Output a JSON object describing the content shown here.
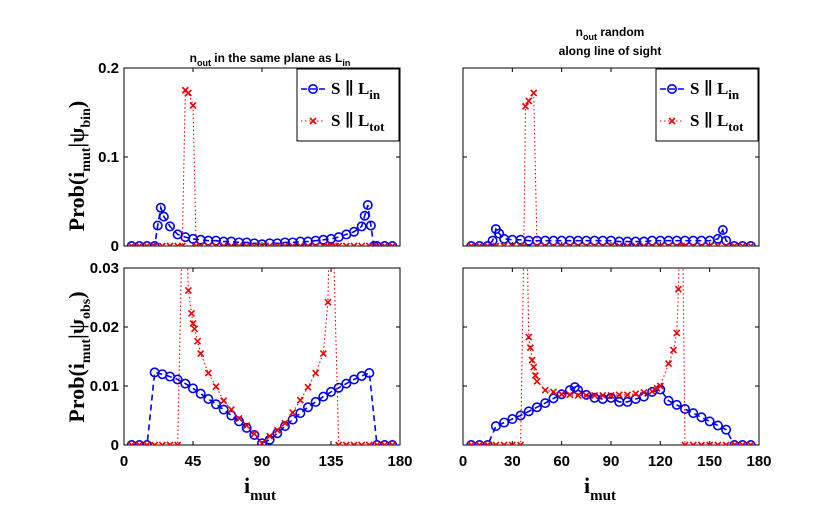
{
  "colors": {
    "blue": "#0000ee",
    "red": "#ee0000",
    "axis": "#000000"
  },
  "titles": {
    "left": {
      "main": "n",
      "sub": "out",
      "rest": " in the same plane as L",
      "sub2": "in"
    },
    "right": {
      "line1_main": "n",
      "line1_sub": "out",
      "line1_rest": " random",
      "line2": "along line of sight"
    }
  },
  "labels": {
    "y_top": {
      "main": "Prob(i",
      "sub1": "mut",
      "mid": "|ψ",
      "sub2": "bin",
      "end": ")"
    },
    "y_bottom": {
      "main": "Prob(i",
      "sub1": "mut",
      "mid": "|ψ",
      "sub2": "obs",
      "end": ")"
    },
    "x": {
      "main": "i",
      "sub": "mut"
    }
  },
  "legend": {
    "blue": {
      "main": "S ∥ L",
      "sub": "in"
    },
    "red": {
      "main": "S ∥ L",
      "sub": "tot"
    }
  },
  "chart_data": [
    {
      "id": "top-left",
      "type": "line",
      "xlim": [
        0,
        180
      ],
      "ylim": [
        0,
        0.2
      ],
      "yticks": [
        0,
        0.1,
        0.2
      ],
      "ytick_labels": [
        "0",
        "0.1",
        "0.2"
      ],
      "xticks": [
        0,
        45,
        90,
        135,
        180
      ],
      "show_xticklabels": false,
      "legend": true,
      "series": [
        {
          "name": "S ∥ L_in",
          "style": "blue",
          "x": [
            5,
            10,
            15,
            20,
            22,
            24,
            26,
            30,
            35,
            40,
            45,
            50,
            55,
            60,
            65,
            70,
            75,
            80,
            85,
            90,
            95,
            100,
            105,
            110,
            115,
            120,
            125,
            130,
            135,
            140,
            145,
            150,
            155,
            157,
            159,
            161,
            163,
            165,
            170,
            175
          ],
          "y": [
            0,
            0,
            0,
            0,
            0.023,
            0.043,
            0.033,
            0.022,
            0.013,
            0.01,
            0.008,
            0.007,
            0.006,
            0.006,
            0.005,
            0.005,
            0.004,
            0.004,
            0.003,
            0.002,
            0.003,
            0.003,
            0.004,
            0.004,
            0.005,
            0.005,
            0.006,
            0.007,
            0.008,
            0.01,
            0.013,
            0.016,
            0.022,
            0.034,
            0.046,
            0.023,
            0,
            0,
            0,
            0
          ]
        },
        {
          "name": "S ∥ L_tot",
          "style": "red",
          "x": [
            5,
            10,
            15,
            20,
            25,
            30,
            35,
            38,
            40,
            42,
            45,
            47,
            50,
            55,
            60,
            65,
            70,
            75,
            80,
            85,
            90,
            95,
            100,
            105,
            110,
            115,
            120,
            125,
            130,
            133,
            135,
            138,
            140,
            145,
            150,
            155,
            160,
            165,
            170,
            175
          ],
          "y": [
            0,
            0,
            0,
            0,
            0,
            0,
            0,
            0,
            0.175,
            0.172,
            0.158,
            0,
            0,
            0,
            0,
            0,
            0,
            0,
            0,
            0,
            0,
            0,
            0,
            0,
            0,
            0,
            0,
            0,
            0,
            0,
            0,
            0,
            0,
            0,
            0,
            0,
            0,
            0,
            0,
            0
          ]
        }
      ]
    },
    {
      "id": "top-right",
      "type": "line",
      "xlim": [
        0,
        180
      ],
      "ylim": [
        0,
        0.2
      ],
      "yticks": [
        0,
        0.1,
        0.2
      ],
      "ytick_labels": [
        "",
        "",
        ""
      ],
      "xticks": [
        0,
        30,
        60,
        90,
        120,
        150,
        180
      ],
      "show_xticklabels": false,
      "legend": true,
      "series": [
        {
          "name": "S ∥ L_in",
          "style": "blue",
          "x": [
            5,
            10,
            15,
            18,
            20,
            22,
            25,
            30,
            35,
            40,
            45,
            50,
            55,
            60,
            65,
            70,
            75,
            80,
            85,
            90,
            95,
            100,
            105,
            110,
            115,
            120,
            125,
            130,
            135,
            140,
            145,
            150,
            155,
            158,
            160,
            165,
            170,
            175
          ],
          "y": [
            0,
            0,
            0,
            0.006,
            0.019,
            0.014,
            0.008,
            0.007,
            0.007,
            0.006,
            0.006,
            0.006,
            0.006,
            0.006,
            0.006,
            0.006,
            0.006,
            0.006,
            0.006,
            0.006,
            0.005,
            0.005,
            0.005,
            0.005,
            0.006,
            0.006,
            0.006,
            0.006,
            0.006,
            0.006,
            0.006,
            0.006,
            0.008,
            0.018,
            0.006,
            0,
            0,
            0
          ]
        },
        {
          "name": "S ∥ L_tot",
          "style": "red",
          "x": [
            5,
            10,
            15,
            20,
            25,
            30,
            35,
            37,
            38,
            40,
            43,
            45,
            50,
            55,
            60,
            65,
            70,
            75,
            80,
            85,
            90,
            95,
            100,
            105,
            110,
            115,
            120,
            125,
            130,
            133,
            135,
            140,
            145,
            150,
            155,
            160,
            165,
            170,
            175
          ],
          "y": [
            0,
            0,
            0,
            0,
            0,
            0,
            0,
            0,
            0.157,
            0.163,
            0.172,
            0,
            0,
            0,
            0,
            0,
            0,
            0,
            0,
            0,
            0,
            0,
            0,
            0,
            0,
            0,
            0,
            0,
            0,
            0,
            0,
            0,
            0,
            0,
            0,
            0,
            0,
            0,
            0
          ]
        }
      ]
    },
    {
      "id": "bottom-left",
      "type": "line",
      "xlim": [
        0,
        180
      ],
      "ylim": [
        0,
        0.03
      ],
      "yticks": [
        0,
        0.01,
        0.02,
        0.03
      ],
      "ytick_labels": [
        "0",
        "0.01",
        "0.02",
        "0.03"
      ],
      "xticks": [
        0,
        45,
        90,
        135,
        180
      ],
      "xtick_labels": [
        "0",
        "45",
        "90",
        "135",
        "180"
      ],
      "show_xticklabels": true,
      "legend": false,
      "series": [
        {
          "name": "S ∥ L_in",
          "style": "blue",
          "x": [
            5,
            10,
            15,
            20,
            25,
            30,
            35,
            40,
            45,
            50,
            55,
            60,
            65,
            70,
            75,
            80,
            85,
            90,
            95,
            100,
            105,
            110,
            115,
            120,
            125,
            130,
            135,
            140,
            145,
            150,
            155,
            160,
            165,
            170,
            175
          ],
          "y": [
            0,
            0,
            0,
            0.0123,
            0.012,
            0.0116,
            0.0111,
            0.0104,
            0.0096,
            0.0087,
            0.0078,
            0.0069,
            0.006,
            0.005,
            0.004,
            0.0029,
            0.0017,
            0.0003,
            0.0009,
            0.002,
            0.0032,
            0.0043,
            0.0054,
            0.0064,
            0.0073,
            0.0082,
            0.009,
            0.0097,
            0.0104,
            0.0111,
            0.0117,
            0.0122,
            0,
            0,
            0
          ]
        },
        {
          "name": "S ∥ L_tot",
          "style": "red",
          "x": [
            5,
            10,
            15,
            20,
            25,
            30,
            35,
            39,
            42,
            44,
            45,
            46,
            48,
            50,
            55,
            60,
            65,
            70,
            75,
            80,
            85,
            90,
            95,
            100,
            105,
            110,
            115,
            120,
            125,
            130,
            133,
            135,
            140,
            145,
            150,
            155,
            160,
            165,
            170,
            175
          ],
          "y": [
            0,
            0,
            0,
            0,
            0,
            0,
            0,
            0.05,
            0.0262,
            0.0223,
            0.0206,
            0.0197,
            0.0176,
            0.0155,
            0.0122,
            0.0099,
            0.0075,
            0.006,
            0.0045,
            0.0033,
            0.0019,
            0.0003,
            0.0015,
            0.0025,
            0.0037,
            0.0055,
            0.0076,
            0.0098,
            0.0122,
            0.0155,
            0.0242,
            0.05,
            0,
            0,
            0,
            0,
            0,
            0,
            0,
            0
          ]
        }
      ]
    },
    {
      "id": "bottom-right",
      "type": "line",
      "xlim": [
        0,
        180
      ],
      "ylim": [
        0,
        0.03
      ],
      "yticks": [
        0,
        0.01,
        0.02,
        0.03
      ],
      "ytick_labels": [
        "",
        "",
        "",
        ""
      ],
      "xticks": [
        0,
        30,
        60,
        90,
        120,
        150,
        180
      ],
      "xtick_labels": [
        "0",
        "30",
        "60",
        "90",
        "120",
        "150",
        "180"
      ],
      "show_xticklabels": true,
      "legend": false,
      "series": [
        {
          "name": "S ∥ L_in",
          "style": "blue",
          "x": [
            5,
            10,
            15,
            20,
            25,
            30,
            35,
            40,
            45,
            50,
            55,
            60,
            65,
            68,
            70,
            75,
            80,
            85,
            90,
            95,
            100,
            105,
            110,
            115,
            120,
            125,
            130,
            135,
            140,
            145,
            150,
            155,
            160,
            165,
            170,
            175
          ],
          "y": [
            0,
            0,
            0,
            0.0032,
            0.0038,
            0.0044,
            0.005,
            0.0057,
            0.0064,
            0.0071,
            0.0079,
            0.0086,
            0.0093,
            0.0098,
            0.0093,
            0.0085,
            0.008,
            0.0078,
            0.008,
            0.0073,
            0.0073,
            0.0078,
            0.0082,
            0.009,
            0.0094,
            0.0075,
            0.0068,
            0.0061,
            0.0054,
            0.0047,
            0.004,
            0.0033,
            0.0026,
            0,
            0,
            0
          ]
        },
        {
          "name": "S ∥ L_tot",
          "style": "red",
          "x": [
            5,
            10,
            15,
            20,
            25,
            30,
            35,
            38,
            40,
            41,
            42,
            43,
            44,
            45,
            50,
            55,
            60,
            65,
            70,
            75,
            80,
            85,
            90,
            95,
            100,
            105,
            110,
            115,
            118,
            120,
            125,
            128,
            130,
            131,
            133,
            135,
            140,
            145,
            150,
            155,
            160,
            165,
            170,
            175
          ],
          "y": [
            0,
            0,
            0,
            0,
            0,
            0,
            0,
            0.05,
            0.0183,
            0.0165,
            0.0144,
            0.0132,
            0.0118,
            0.0108,
            0.0093,
            0.009,
            0.0086,
            0.0085,
            0.0084,
            0.0084,
            0.0084,
            0.0084,
            0.0084,
            0.0085,
            0.0085,
            0.0087,
            0.0089,
            0.0091,
            0.0096,
            0.01,
            0.0138,
            0.0161,
            0.019,
            0.0264,
            0.05,
            0,
            0,
            0,
            0,
            0,
            0,
            0,
            0,
            0
          ]
        }
      ]
    }
  ]
}
